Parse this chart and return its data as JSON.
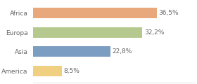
{
  "categories": [
    "Africa",
    "Europa",
    "Asia",
    "America"
  ],
  "values": [
    36.5,
    32.2,
    22.8,
    8.5
  ],
  "labels": [
    "36,5%",
    "32,2%",
    "22,8%",
    "8,5%"
  ],
  "bar_colors": [
    "#e8a87c",
    "#b5c98e",
    "#7b9dc2",
    "#f0d080"
  ],
  "background_color": "#ffffff",
  "xlim": [
    0,
    48
  ],
  "label_fontsize": 6.5,
  "tick_fontsize": 6.5,
  "bar_height": 0.55,
  "grid_color": "#dddddd",
  "text_color": "#666666"
}
